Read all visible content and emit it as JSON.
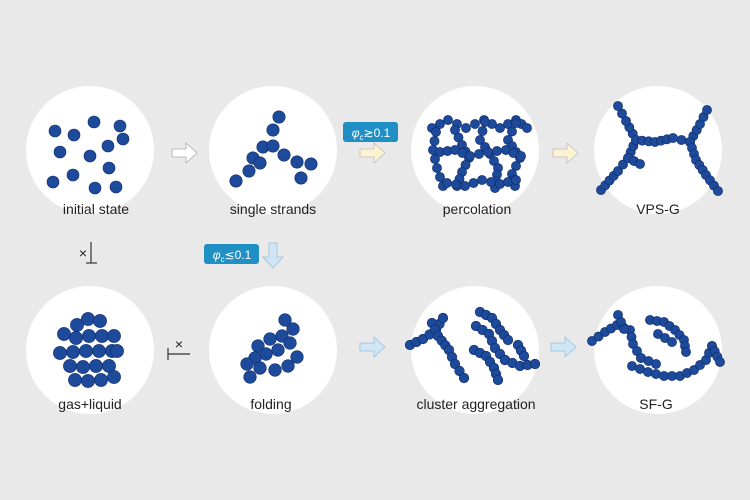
{
  "colors": {
    "background": "#e9e9e9",
    "circle": "#ffffff",
    "particle_fill": "#1e4a9c",
    "particle_edge": "#0e2a66",
    "arrow_white": "#ffffff",
    "arrow_yellow": "#fbf3d2",
    "arrow_blue": "#cfe6f7",
    "badge": "#1f8fc4"
  },
  "states": {
    "initial_state": "initial state",
    "single_strands": "single strands",
    "percolation": "percolation",
    "vps_g": "VPS-G",
    "gas_liquid": "gas+liquid",
    "folding": "folding",
    "cluster_aggregation": "cluster aggregation",
    "sf_g": "SF-G"
  },
  "conditions": {
    "high": {
      "symbol": "φ",
      "subscript": "c",
      "relation": "≳0.1"
    },
    "low": {
      "symbol": "φ",
      "subscript": "c",
      "relation": "≲0.1"
    }
  },
  "blocked_symbol": "×",
  "icons": {
    "particle": "particle-icon",
    "arrow": "arrow-icon",
    "blocked": "blocked-transition-icon"
  }
}
